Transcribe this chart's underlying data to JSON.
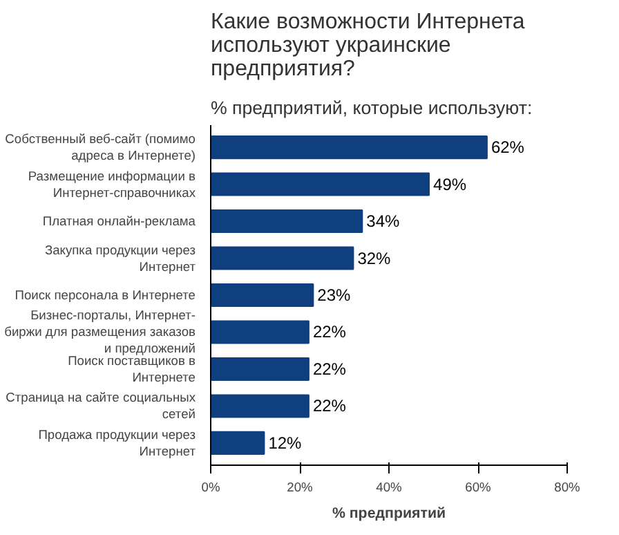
{
  "chart_data": {
    "type": "bar",
    "orientation": "horizontal",
    "title": "Какие возможности Интернета используют украинские предприятия?",
    "subtitle": "% предприятий, которые используют:",
    "xlabel": "% предприятий",
    "categories": [
      "Собственный веб-сайт (помимо адреса в Интернете)",
      "Размещение информации в Интернет-справочниках",
      "Платная онлайн-реклама",
      "Закупка продукции через Интернет",
      "Поиск персонала в Интернете",
      "Бизнес-порталы, Интернет-биржи для размещения заказов и предложений",
      "Поиск поставщиков в Интернете",
      "Страница на сайте социальных сетей",
      "Продажа продукции через Интернет"
    ],
    "values": [
      62,
      49,
      34,
      32,
      23,
      22,
      22,
      22,
      12
    ],
    "value_labels": [
      "62%",
      "49%",
      "34%",
      "32%",
      "23%",
      "22%",
      "22%",
      "22%",
      "12%"
    ],
    "color": "#0f3f7f",
    "xlim": [
      0,
      80
    ],
    "xticks": [
      {
        "value": 0,
        "label": "0%"
      },
      {
        "value": 20,
        "label": "20%"
      },
      {
        "value": 40,
        "label": "40%"
      },
      {
        "value": 60,
        "label": "60%"
      },
      {
        "value": 80,
        "label": "80%"
      }
    ],
    "grid": false
  }
}
